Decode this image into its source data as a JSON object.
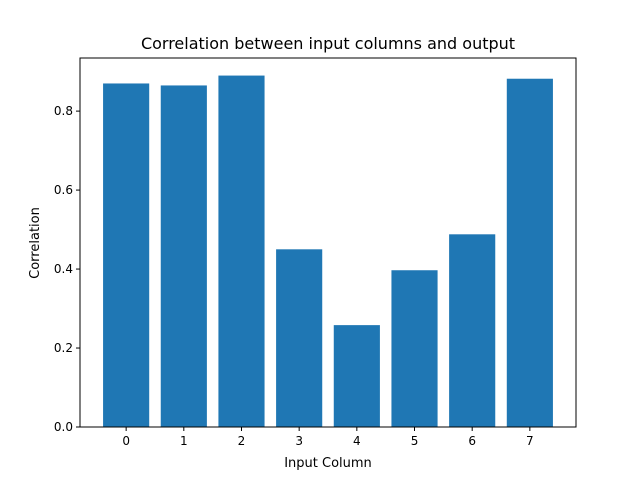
{
  "chart_data": {
    "type": "bar",
    "title": "Correlation between input columns and output",
    "xlabel": "Input Column",
    "ylabel": "Correlation",
    "categories": [
      "0",
      "1",
      "2",
      "3",
      "4",
      "5",
      "6",
      "7"
    ],
    "values": [
      0.87,
      0.865,
      0.89,
      0.45,
      0.258,
      0.397,
      0.488,
      0.882
    ],
    "ylim": [
      0,
      0.9345
    ],
    "yticks": [
      "0.0",
      "0.2",
      "0.4",
      "0.6",
      "0.8"
    ],
    "grid": false,
    "bar_color": "#1f77b4"
  }
}
